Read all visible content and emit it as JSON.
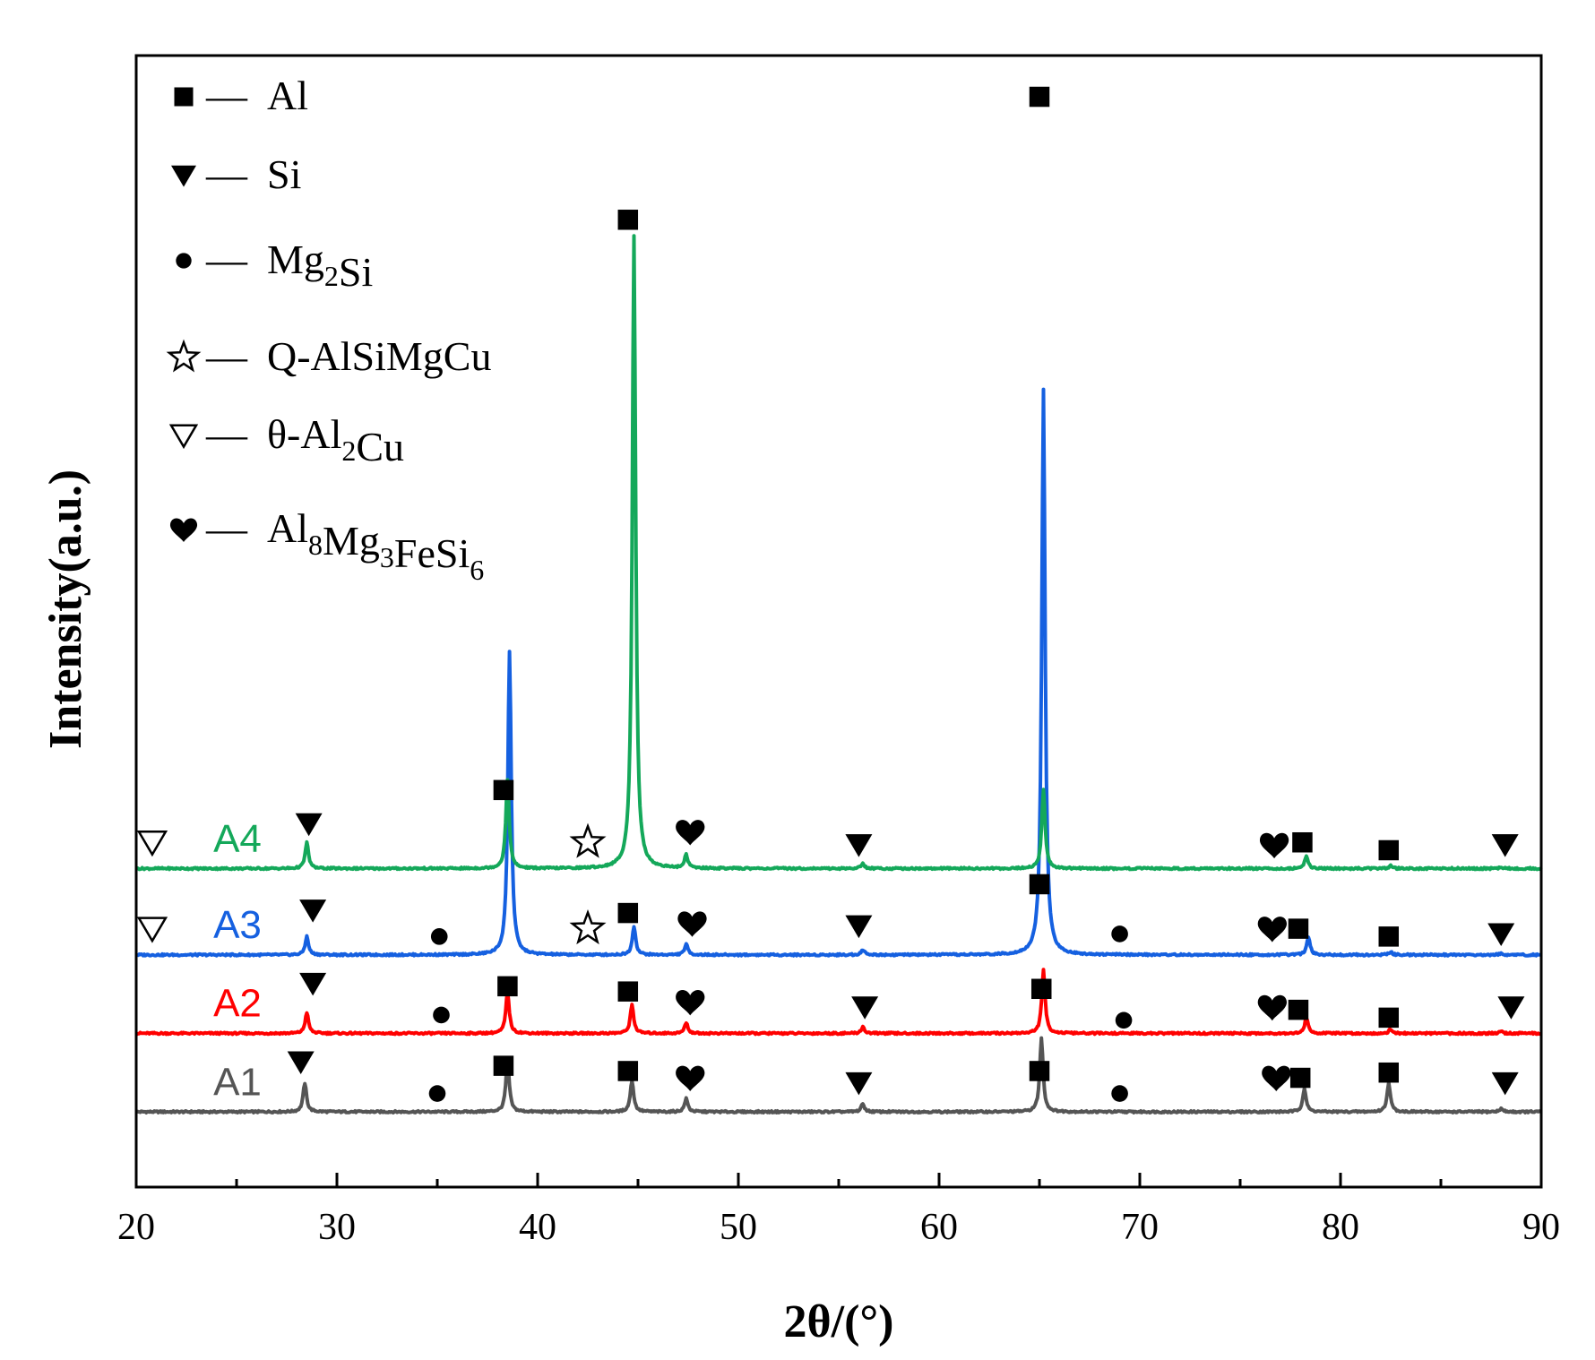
{
  "chart_data": {
    "type": "line",
    "xlabel": "2θ/(°)",
    "ylabel": "Intensity(a.u.)",
    "xlim": [
      20,
      90
    ],
    "xticks": [
      "20",
      "30",
      "40",
      "50",
      "60",
      "70",
      "80",
      "90"
    ],
    "legend_position": "top-left",
    "legend": [
      {
        "symbol": "filled-square",
        "dash": "—",
        "label": "Al",
        "parts": [
          [
            "Al",
            ""
          ]
        ]
      },
      {
        "symbol": "filled-down-triangle",
        "dash": "—",
        "label": "Si",
        "parts": [
          [
            "Si",
            ""
          ]
        ]
      },
      {
        "symbol": "filled-circle",
        "dash": "—",
        "label": "Mg2Si",
        "parts": [
          [
            "Mg",
            "2"
          ],
          [
            "Si",
            ""
          ]
        ]
      },
      {
        "symbol": "open-star",
        "dash": "—",
        "label": "Q-AlSiMgCu",
        "parts": [
          [
            "Q-AlSiMgCu",
            ""
          ]
        ]
      },
      {
        "symbol": "open-down-triangle",
        "dash": "—",
        "label": "θ-Al2Cu",
        "parts": [
          [
            "θ-Al",
            "2"
          ],
          [
            "Cu",
            ""
          ]
        ]
      },
      {
        "symbol": "heart",
        "dash": "—",
        "label": "Al8Mg3FeSi6",
        "parts": [
          [
            "Al",
            "8"
          ],
          [
            "Mg",
            "3"
          ],
          [
            "FeSi",
            "6"
          ]
        ]
      }
    ],
    "series": [
      {
        "name": "A1",
        "color": "#555555",
        "baseline": 0,
        "peaks": [
          {
            "x": 28.4,
            "h": 5.5
          },
          {
            "x": 38.5,
            "h": 10
          },
          {
            "x": 44.7,
            "h": 6
          },
          {
            "x": 47.4,
            "h": 2.5
          },
          {
            "x": 56.2,
            "h": 1.5
          },
          {
            "x": 65.1,
            "h": 14
          },
          {
            "x": 78.2,
            "h": 4.5
          },
          {
            "x": 82.4,
            "h": 5.5
          },
          {
            "x": 88.0,
            "h": 0.6
          }
        ],
        "markers": [
          {
            "symbol": "filled-down-triangle",
            "x": 28.2,
            "y": 9.5
          },
          {
            "symbol": "filled-circle",
            "x": 35.0,
            "y": 3.5
          },
          {
            "symbol": "filled-square",
            "x": 38.3,
            "y": 8.8
          },
          {
            "symbol": "filled-square",
            "x": 44.5,
            "y": 7.8
          },
          {
            "symbol": "heart",
            "x": 47.6,
            "y": 6.5
          },
          {
            "symbol": "filled-down-triangle",
            "x": 56.0,
            "y": 5.5
          },
          {
            "symbol": "filled-square",
            "x": 65.0,
            "y": 7.8
          },
          {
            "symbol": "filled-circle",
            "x": 69.0,
            "y": 3.5
          },
          {
            "symbol": "heart",
            "x": 76.8,
            "y": 6.5
          },
          {
            "symbol": "filled-square",
            "x": 78.0,
            "y": 6.5
          },
          {
            "symbol": "filled-square",
            "x": 82.4,
            "y": 7.5
          },
          {
            "symbol": "filled-down-triangle",
            "x": 88.2,
            "y": 5.5
          }
        ]
      },
      {
        "name": "A2",
        "color": "#ff0000",
        "baseline": 15,
        "peaks": [
          {
            "x": 28.5,
            "h": 4
          },
          {
            "x": 38.5,
            "h": 8
          },
          {
            "x": 44.7,
            "h": 5.5
          },
          {
            "x": 47.4,
            "h": 2
          },
          {
            "x": 56.2,
            "h": 1.2
          },
          {
            "x": 65.2,
            "h": 12
          },
          {
            "x": 78.3,
            "h": 3
          },
          {
            "x": 82.5,
            "h": 0.8
          },
          {
            "x": 88.0,
            "h": 0.4
          }
        ],
        "markers": [
          {
            "symbol": "filled-down-triangle",
            "x": 28.8,
            "y": 9.5
          },
          {
            "symbol": "filled-circle",
            "x": 35.2,
            "y": 3.5
          },
          {
            "symbol": "filled-square",
            "x": 38.5,
            "y": 9
          },
          {
            "symbol": "filled-square",
            "x": 44.5,
            "y": 8
          },
          {
            "symbol": "heart",
            "x": 47.6,
            "y": 6.0
          },
          {
            "symbol": "filled-down-triangle",
            "x": 56.3,
            "y": 5.0
          },
          {
            "symbol": "filled-square",
            "x": 65.1,
            "y": 8.5
          },
          {
            "symbol": "filled-circle",
            "x": 69.2,
            "y": 2.5
          },
          {
            "symbol": "heart",
            "x": 76.6,
            "y": 5.0
          },
          {
            "symbol": "filled-square",
            "x": 77.9,
            "y": 4.5
          },
          {
            "symbol": "filled-square",
            "x": 82.4,
            "y": 3.0
          },
          {
            "symbol": "filled-down-triangle",
            "x": 88.5,
            "y": 5.0
          }
        ]
      },
      {
        "name": "A3",
        "color": "#1560e0",
        "baseline": 30,
        "peaks": [
          {
            "x": 28.5,
            "h": 3.5
          },
          {
            "x": 38.6,
            "h": 58
          },
          {
            "x": 44.8,
            "h": 5.5
          },
          {
            "x": 47.4,
            "h": 2
          },
          {
            "x": 56.2,
            "h": 1.0
          },
          {
            "x": 65.2,
            "h": 108
          },
          {
            "x": 78.4,
            "h": 3.5
          },
          {
            "x": 82.5,
            "h": 0.6
          },
          {
            "x": 88.0,
            "h": 0.3
          }
        ],
        "markers": [
          {
            "symbol": "open-down-triangle",
            "x": 20.8,
            "y": 5.0
          },
          {
            "symbol": "filled-down-triangle",
            "x": 28.8,
            "y": 8.5
          },
          {
            "symbol": "filled-circle",
            "x": 35.1,
            "y": 3.5
          },
          {
            "symbol": "open-star",
            "x": 42.5,
            "y": 5.0
          },
          {
            "symbol": "filled-square",
            "x": 44.5,
            "y": 8.0
          },
          {
            "symbol": "heart",
            "x": 47.7,
            "y": 6.0
          },
          {
            "symbol": "filled-down-triangle",
            "x": 56.0,
            "y": 5.5
          },
          {
            "symbol": "filled-square",
            "x": 65.0,
            "y": 13.5
          },
          {
            "symbol": "filled-circle",
            "x": 69.0,
            "y": 4.0
          },
          {
            "symbol": "heart",
            "x": 76.6,
            "y": 5.0
          },
          {
            "symbol": "filled-square",
            "x": 77.9,
            "y": 5.0
          },
          {
            "symbol": "filled-square",
            "x": 82.4,
            "y": 3.5
          },
          {
            "symbol": "filled-down-triangle",
            "x": 88.0,
            "y": 4.0
          }
        ]
      },
      {
        "name": "A4",
        "color": "#14a85a",
        "baseline": 46.5,
        "peaks": [
          {
            "x": 28.5,
            "h": 5
          },
          {
            "x": 38.5,
            "h": 17
          },
          {
            "x": 44.8,
            "h": 121
          },
          {
            "x": 47.4,
            "h": 2.5
          },
          {
            "x": 56.2,
            "h": 1.0
          },
          {
            "x": 65.2,
            "h": 15
          },
          {
            "x": 78.3,
            "h": 2.5
          },
          {
            "x": 82.5,
            "h": 0.5
          },
          {
            "x": 88.0,
            "h": 0.3
          }
        ],
        "markers": [
          {
            "symbol": "open-down-triangle",
            "x": 20.8,
            "y": 5.0
          },
          {
            "symbol": "filled-down-triangle",
            "x": 28.6,
            "y": 8.5
          },
          {
            "symbol": "open-star",
            "x": 42.5,
            "y": 5.0
          },
          {
            "symbol": "filled-square",
            "x": 44.5,
            "y": 124
          },
          {
            "symbol": "heart",
            "x": 47.6,
            "y": 7.0
          },
          {
            "symbol": "filled-down-triangle",
            "x": 56.0,
            "y": 4.5
          },
          {
            "symbol": "filled-square",
            "x": 65.0,
            "y": 147.5
          },
          {
            "symbol": "heart",
            "x": 76.7,
            "y": 4.5
          },
          {
            "symbol": "filled-square",
            "x": 78.1,
            "y": 5.0
          },
          {
            "symbol": "filled-square",
            "x": 82.4,
            "y": 3.5
          },
          {
            "symbol": "filled-down-triangle",
            "x": 88.2,
            "y": 4.5
          }
        ]
      }
    ],
    "extra_markers": [
      {
        "symbol": "filled-square",
        "x": 38.3,
        "y": 61.5
      }
    ]
  }
}
